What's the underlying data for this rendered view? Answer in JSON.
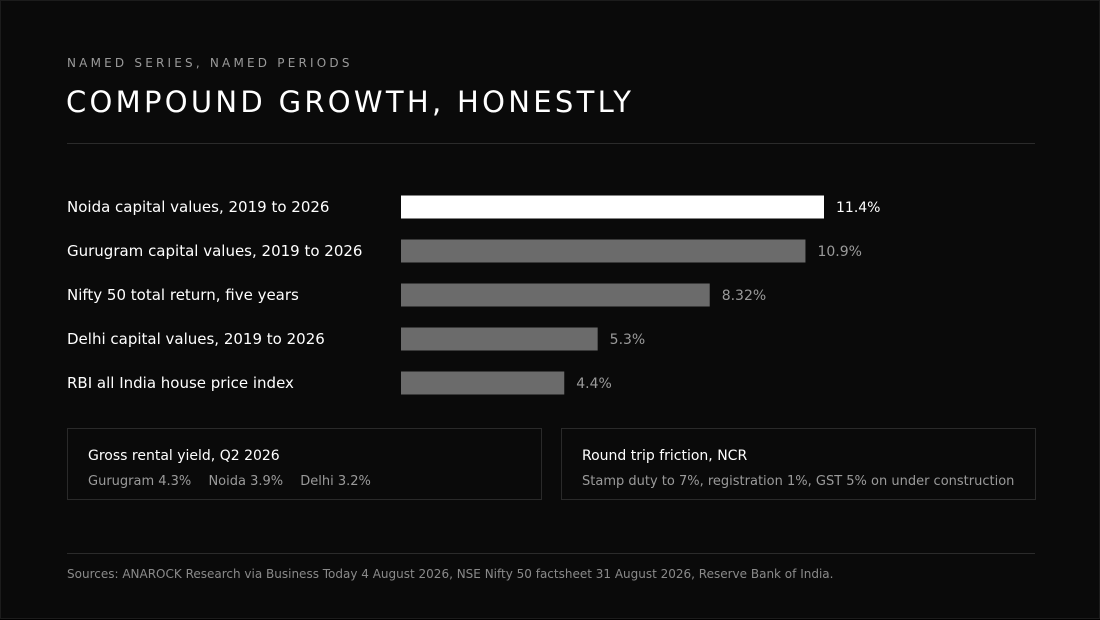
{
  "header": {
    "eyebrow": "NAMED SERIES, NAMED PERIODS",
    "title": "COMPOUND GROWTH, HONESTLY"
  },
  "colors": {
    "background": "#0a0a0a",
    "highlight_bar": "#ffffff",
    "default_bar": "#6b6b6b",
    "highlight_label": "#ffffff",
    "muted_text": "#9a9a9a"
  },
  "chart_data": {
    "type": "bar",
    "orientation": "horizontal",
    "categories": [
      "Noida capital values, 2019 to 2026",
      "Gurugram capital values, 2019 to 2026",
      "Nifty 50 total return, five years",
      "Delhi capital values, 2019 to 2026",
      "RBI all India house price index"
    ],
    "values": [
      11.4,
      10.9,
      8.32,
      5.3,
      4.4
    ],
    "value_labels": [
      "11.4%",
      "10.9%",
      "8.32%",
      "5.3%",
      "4.4%"
    ],
    "highlight_index": 0,
    "unit": "%",
    "xlim": [
      0,
      11.4
    ],
    "grid": false,
    "legend": "none",
    "title": "",
    "xlabel": "",
    "ylabel": ""
  },
  "cards": {
    "yield": {
      "title": "Gross rental yield, Q2 2026",
      "items": [
        "Gurugram 4.3%",
        "Noida 3.9%",
        "Delhi 3.2%"
      ]
    },
    "friction": {
      "title": "Round trip friction, NCR",
      "body": "Stamp duty to 7%, registration 1%, GST 5% on under construction"
    }
  },
  "footer": {
    "sources": "Sources: ANAROCK Research via Business Today 4 August 2026, NSE Nifty 50 factsheet 31 August 2026, Reserve Bank of India."
  }
}
